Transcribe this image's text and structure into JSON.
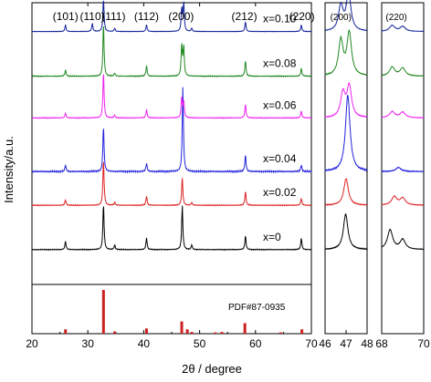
{
  "chart_data": {
    "type": "line",
    "ylabel": "Intensity/a.u.",
    "xlabel": "2θ / degree",
    "ylim": [
      0,
      1
    ],
    "panels": [
      {
        "id": "main",
        "xlim": [
          20,
          70
        ],
        "xticks": [
          20,
          30,
          40,
          50,
          60,
          70
        ],
        "xtick_labels": [
          "20",
          "30",
          "40",
          "50",
          "60",
          "70"
        ]
      },
      {
        "id": "zoom200",
        "xlim": [
          46,
          48
        ],
        "xticks": [
          46,
          47,
          48
        ],
        "xtick_labels": [
          "46",
          "47",
          "48"
        ]
      },
      {
        "id": "zoom220",
        "xlim": [
          68,
          70
        ],
        "xticks": [
          68,
          70
        ],
        "xtick_labels": [
          "68",
          "70"
        ]
      }
    ],
    "peak_labels": [
      {
        "text": "(101)",
        "x": 26.0
      },
      {
        "text": "(110)",
        "x": 30.8
      },
      {
        "text": "(111)",
        "x": 34.6
      },
      {
        "text": "(112)",
        "x": 40.5
      },
      {
        "text": "(200)",
        "x": 46.7
      },
      {
        "text": "(212)",
        "x": 58.0
      },
      {
        "text": "(220)",
        "x": 68.3
      }
    ],
    "zoom_peak_labels": [
      {
        "panel": "zoom200",
        "text": "(200)",
        "x": 46.75
      },
      {
        "panel": "zoom220",
        "text": "(220)",
        "x": 68.7
      }
    ],
    "reference": {
      "name": "PDF#87-0935",
      "color": "#cc2222",
      "lines": [
        {
          "x": 26.0,
          "h": 0.1
        },
        {
          "x": 32.8,
          "h": 1.0
        },
        {
          "x": 34.8,
          "h": 0.05
        },
        {
          "x": 40.5,
          "h": 0.12
        },
        {
          "x": 46.8,
          "h": 0.28
        },
        {
          "x": 47.8,
          "h": 0.1
        },
        {
          "x": 48.6,
          "h": 0.04
        },
        {
          "x": 52.8,
          "h": 0.03
        },
        {
          "x": 54.0,
          "h": 0.04
        },
        {
          "x": 58.1,
          "h": 0.24
        },
        {
          "x": 64.5,
          "h": 0.03
        },
        {
          "x": 68.3,
          "h": 0.1
        }
      ]
    },
    "series": [
      {
        "name": "x=0",
        "color": "#000000",
        "base": 0.254,
        "amp": 0.141,
        "peaks": [
          [
            26.0,
            0.18
          ],
          [
            32.8,
            1.0
          ],
          [
            34.8,
            0.1
          ],
          [
            40.5,
            0.25
          ],
          [
            46.9,
            0.95
          ],
          [
            48.6,
            0.1
          ],
          [
            58.2,
            0.3
          ],
          [
            68.2,
            0.25
          ]
        ],
        "zoom200": [
          [
            46.98,
            0.8
          ]
        ],
        "zoom220": [
          [
            68.4,
            0.7
          ],
          [
            69.0,
            0.35
          ]
        ]
      },
      {
        "name": "x=0.02",
        "color": "#dd2222",
        "base": 0.388,
        "amp": 0.141,
        "peaks": [
          [
            26.0,
            0.12
          ],
          [
            32.8,
            1.0
          ],
          [
            34.8,
            0.06
          ],
          [
            40.5,
            0.2
          ],
          [
            46.9,
            0.6
          ],
          [
            48.6,
            0.06
          ],
          [
            58.2,
            0.3
          ],
          [
            68.2,
            0.15
          ]
        ],
        "zoom200": [
          [
            47.0,
            0.6
          ]
        ],
        "zoom220": [
          [
            68.6,
            0.3
          ],
          [
            69.0,
            0.25
          ]
        ]
      },
      {
        "name": "x=0.04",
        "color": "#2222dd",
        "base": 0.49,
        "amp": 0.255,
        "peaks": [
          [
            26.0,
            0.08
          ],
          [
            32.8,
            0.55
          ],
          [
            40.5,
            0.1
          ],
          [
            47.0,
            1.0
          ],
          [
            58.2,
            0.2
          ],
          [
            68.2,
            0.08
          ]
        ],
        "zoom200": [
          [
            47.08,
            0.95
          ]
        ],
        "zoom220": [
          [
            68.8,
            0.08
          ]
        ]
      },
      {
        "name": "x=0.06",
        "color": "#ee22ee",
        "base": 0.652,
        "amp": 0.141,
        "peaks": [
          [
            26.0,
            0.1
          ],
          [
            32.8,
            1.0
          ],
          [
            34.8,
            0.06
          ],
          [
            40.5,
            0.18
          ],
          [
            46.8,
            0.45
          ],
          [
            47.15,
            0.35
          ],
          [
            58.2,
            0.3
          ],
          [
            68.2,
            0.15
          ]
        ],
        "zoom200": [
          [
            46.85,
            0.55
          ],
          [
            47.15,
            0.7
          ]
        ],
        "zoom220": [
          [
            68.5,
            0.22
          ],
          [
            69.0,
            0.2
          ]
        ]
      },
      {
        "name": "x=0.08",
        "color": "#228822",
        "base": 0.778,
        "amp": 0.16,
        "peaks": [
          [
            26.0,
            0.12
          ],
          [
            32.8,
            1.0
          ],
          [
            34.8,
            0.06
          ],
          [
            40.5,
            0.2
          ],
          [
            46.8,
            0.6
          ],
          [
            47.15,
            0.55
          ],
          [
            58.2,
            0.3
          ],
          [
            68.2,
            0.15
          ]
        ],
        "zoom200": [
          [
            46.75,
            0.7
          ],
          [
            47.15,
            0.85
          ]
        ],
        "zoom220": [
          [
            68.5,
            0.28
          ],
          [
            69.0,
            0.25
          ]
        ]
      },
      {
        "name": "x=0.10",
        "color": "#112299",
        "base": 0.913,
        "amp": 0.1,
        "peaks": [
          [
            26.0,
            0.2
          ],
          [
            30.8,
            0.25
          ],
          [
            32.8,
            1.0
          ],
          [
            34.8,
            0.1
          ],
          [
            40.5,
            0.2
          ],
          [
            46.8,
            0.7
          ],
          [
            47.15,
            0.85
          ],
          [
            48.6,
            0.1
          ],
          [
            58.2,
            0.3
          ],
          [
            68.2,
            0.2
          ]
        ],
        "zoom200": [
          [
            46.75,
            0.8
          ],
          [
            47.12,
            1.2
          ]
        ],
        "zoom220": [
          [
            68.5,
            0.3
          ],
          [
            69.0,
            0.25
          ]
        ]
      }
    ]
  }
}
